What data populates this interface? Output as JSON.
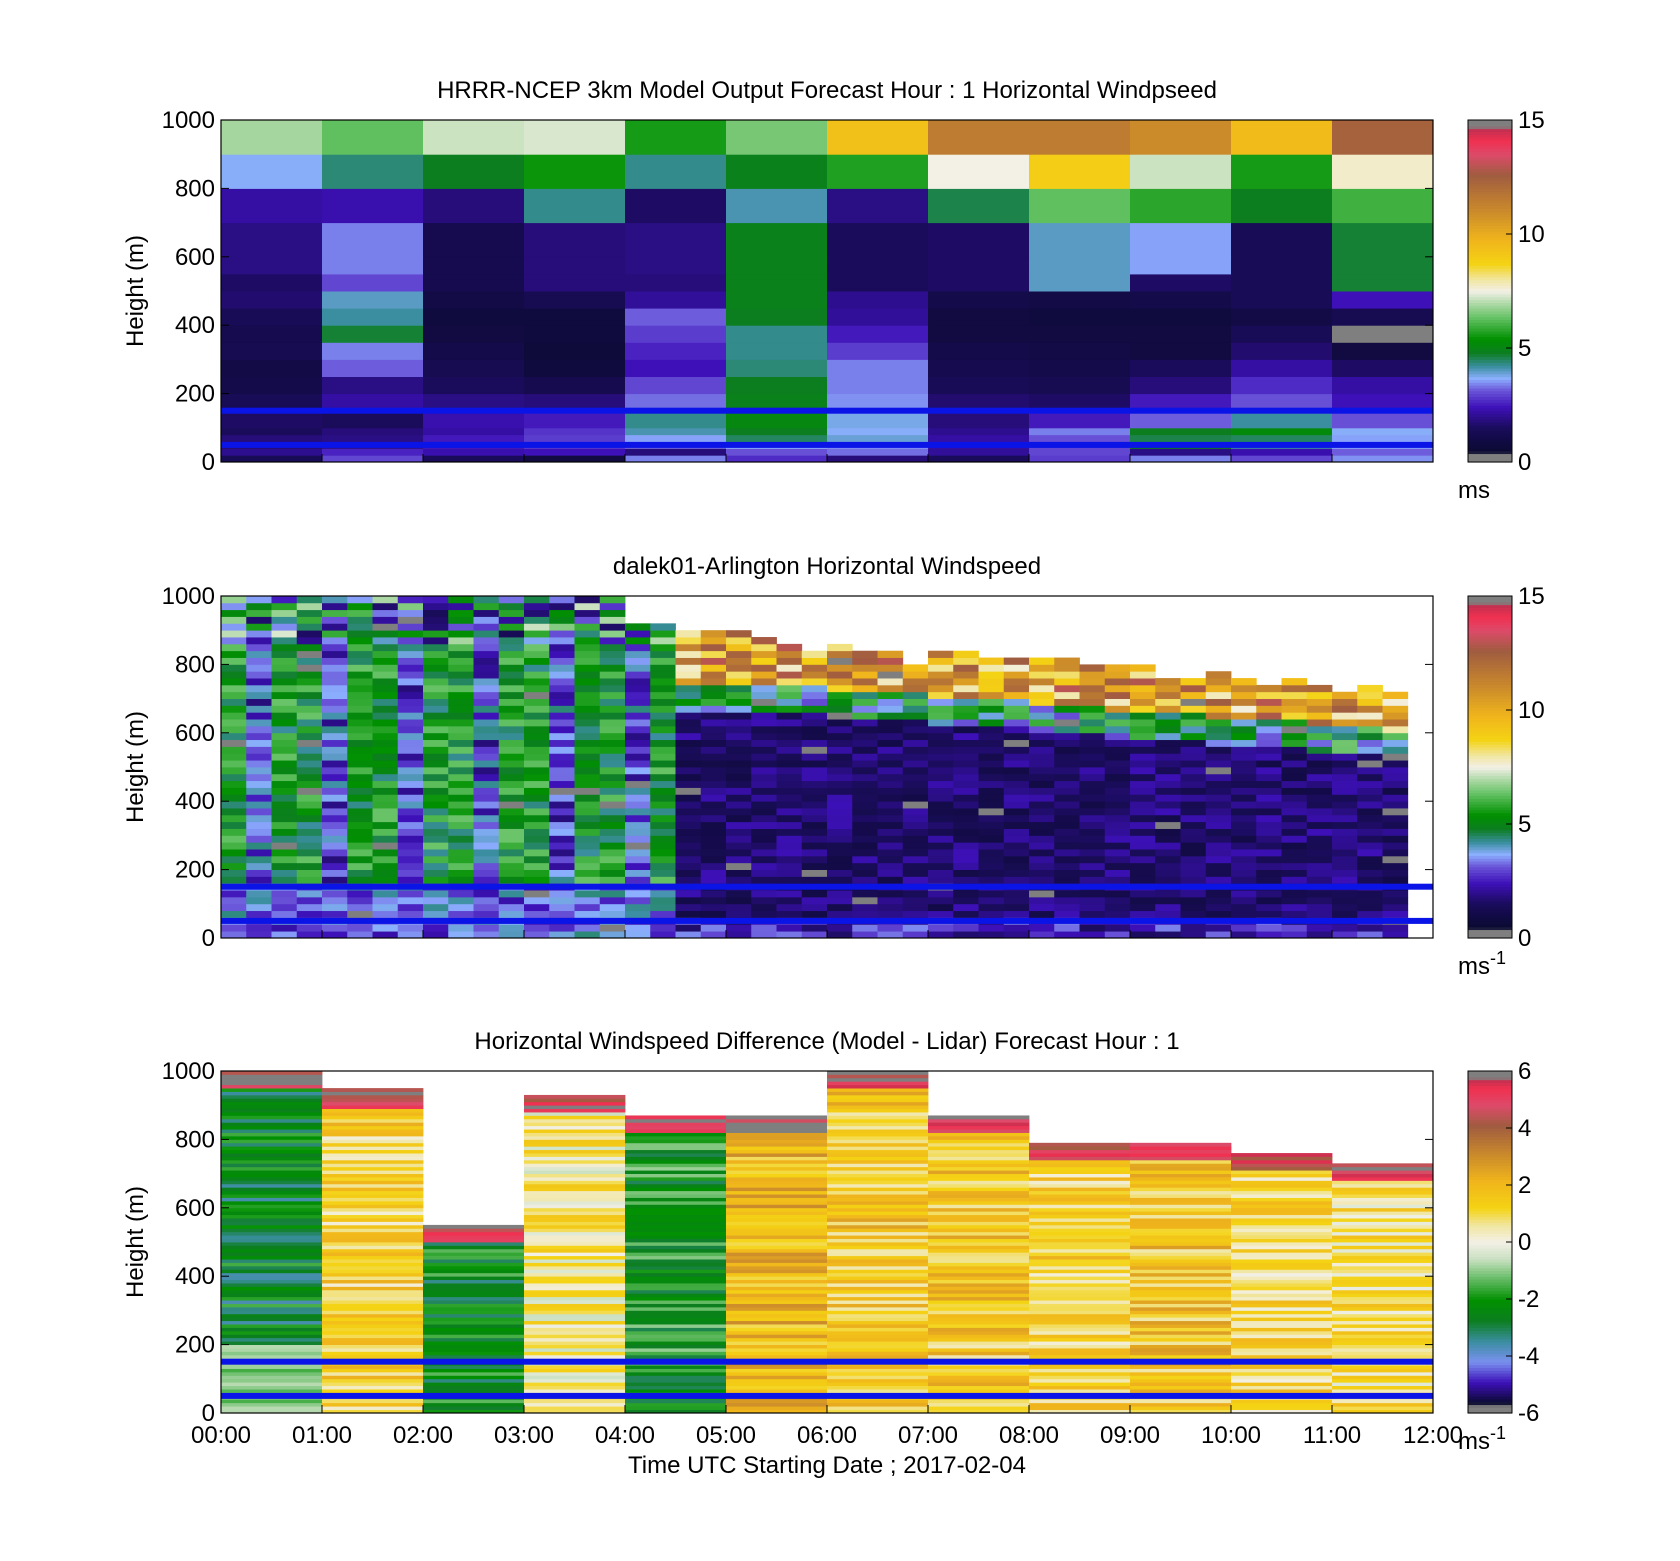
{
  "figure": {
    "xlabel": "Time UTC  Starting Date ; 2017-02-04",
    "x_ticks": [
      "00:00",
      "01:00",
      "02:00",
      "03:00",
      "04:00",
      "05:00",
      "06:00",
      "07:00",
      "08:00",
      "09:00",
      "10:00",
      "11:00",
      "12:00"
    ],
    "ref_lines_m": [
      150,
      50
    ],
    "ref_line_color": "#0a14e6"
  },
  "chart_data": [
    {
      "type": "heatmap",
      "title": "HRRR-NCEP 3km Model Output   Forecast Hour : 1 Horizontal Windpseed",
      "ylabel": "Height (m)",
      "y_ticks": [
        "0",
        "200",
        "400",
        "600",
        "800",
        "1000"
      ],
      "ylim": [
        0,
        1000
      ],
      "xlim_hours": [
        0,
        12
      ],
      "colorbar": {
        "range": [
          0,
          15
        ],
        "ticks": [
          "0",
          "5",
          "10",
          "15"
        ],
        "unit": "ms",
        "unit_sup": ""
      },
      "x_edges_hours": [
        0,
        1,
        2,
        3,
        4,
        5,
        6,
        7,
        8,
        9,
        10,
        11,
        12
      ],
      "y_edges_m": [
        0,
        20,
        40,
        60,
        80,
        100,
        150,
        200,
        250,
        300,
        350,
        400,
        450,
        500,
        550,
        600,
        700,
        800,
        900,
        1000
      ],
      "values": [
        [
          1.4,
          3.0,
          1.5,
          0.9,
          3.4,
          2.7,
          1.8,
          1.5,
          2.9,
          3.4,
          3.0,
          3.5
        ],
        [
          2.0,
          2.6,
          2.3,
          2.4,
          1.8,
          3.1,
          3.3,
          2.1,
          3.0,
          1.9,
          2.3,
          3.2
        ],
        [
          1.7,
          1.9,
          2.5,
          2.9,
          3.3,
          3.7,
          3.5,
          2.2,
          3.0,
          4.8,
          4.2,
          3.6
        ],
        [
          1.8,
          1.9,
          2.5,
          2.9,
          3.6,
          4.5,
          3.9,
          2.2,
          3.1,
          4.6,
          4.5,
          3.6
        ],
        [
          1.5,
          1.8,
          2.2,
          2.8,
          4.1,
          4.8,
          3.7,
          2.0,
          3.4,
          4.8,
          5.2,
          3.7
        ],
        [
          1.6,
          1.5,
          2.3,
          2.5,
          4.3,
          5.1,
          3.8,
          1.8,
          2.5,
          3.2,
          4.2,
          3.1
        ],
        [
          1.4,
          2.2,
          1.9,
          1.8,
          3.3,
          4.9,
          3.5,
          1.7,
          1.6,
          2.5,
          3.1,
          2.4
        ],
        [
          1.1,
          1.9,
          1.5,
          1.2,
          3.0,
          4.8,
          3.4,
          1.4,
          1.3,
          1.8,
          2.7,
          2.2
        ],
        [
          1.0,
          3.2,
          1.3,
          0.8,
          2.4,
          4.4,
          3.4,
          1.2,
          1.1,
          1.5,
          2.2,
          1.6
        ],
        [
          1.3,
          3.4,
          1.1,
          0.7,
          2.6,
          4.3,
          2.9,
          1.1,
          1.0,
          0.9,
          1.7,
          0.9
        ],
        [
          1.2,
          4.7,
          0.9,
          0.8,
          2.9,
          4.3,
          2.5,
          0.9,
          0.9,
          0.9,
          1.4,
          0.2
        ],
        [
          1.4,
          4.2,
          0.8,
          0.8,
          3.2,
          4.8,
          2.1,
          0.9,
          0.8,
          0.8,
          1.0,
          1.3
        ],
        [
          1.7,
          4.0,
          1.0,
          1.3,
          2.1,
          4.9,
          2.0,
          1.1,
          1.0,
          1.1,
          1.4,
          2.4
        ],
        [
          1.6,
          3.0,
          1.2,
          1.8,
          1.8,
          4.9,
          1.5,
          1.6,
          4.0,
          1.6,
          1.4,
          4.7
        ],
        [
          1.9,
          3.4,
          1.2,
          1.8,
          1.9,
          4.9,
          1.5,
          1.6,
          4.0,
          3.6,
          1.4,
          4.7
        ],
        [
          1.9,
          3.4,
          1.2,
          1.8,
          1.9,
          4.9,
          1.5,
          1.6,
          4.0,
          3.6,
          1.4,
          4.7
        ],
        [
          2.2,
          2.3,
          1.8,
          4.3,
          1.6,
          4.1,
          1.9,
          4.6,
          6.3,
          5.8,
          4.8,
          6.0
        ],
        [
          3.7,
          4.4,
          4.8,
          5.5,
          4.3,
          4.9,
          5.7,
          7.5,
          8.9,
          7.2,
          5.6,
          7.7
        ],
        [
          6.9,
          6.3,
          7.2,
          7.3,
          5.6,
          6.5,
          9.3,
          11.5,
          11.5,
          11.0,
          9.5,
          12.4
        ]
      ]
    },
    {
      "type": "heatmap",
      "title": "dalek01-Arlington  Horizontal Windspeed",
      "ylabel": "Height (m)",
      "y_ticks": [
        "0",
        "200",
        "400",
        "600",
        "800",
        "1000"
      ],
      "ylim": [
        0,
        1000
      ],
      "xlim_hours": [
        0,
        12
      ],
      "colorbar": {
        "range": [
          0,
          15
        ],
        "ticks": [
          "0",
          "5",
          "10",
          "15"
        ],
        "unit": "ms",
        "unit_sup": "-1"
      },
      "profile_interval_minutes": 15,
      "profile_count": 47,
      "y_bin_m": 20
    },
    {
      "type": "heatmap",
      "title": "Horizontal Windspeed Difference (Model - Lidar) Forecast Hour : 1",
      "ylabel": "Height (m)",
      "y_ticks": [
        "0",
        "200",
        "400",
        "600",
        "800",
        "1000"
      ],
      "ylim": [
        0,
        1000
      ],
      "xlim_hours": [
        0,
        12
      ],
      "colorbar": {
        "range": [
          -6,
          6
        ],
        "ticks": [
          "-6",
          "-4",
          "-2",
          "0",
          "2",
          "4",
          "6"
        ],
        "unit": "ms",
        "unit_sup": "-1"
      },
      "column_tops_m": [
        1000,
        945,
        550,
        930,
        870,
        870,
        1000,
        870,
        790,
        790,
        760,
        730
      ]
    }
  ],
  "colormaps": {
    "speed_stops": [
      [
        0.0,
        "#7f7f7f"
      ],
      [
        0.024,
        "#7f7f7f"
      ],
      [
        0.03,
        "#0a0a30"
      ],
      [
        0.1,
        "#1a0c5a"
      ],
      [
        0.16,
        "#3d10b8"
      ],
      [
        0.21,
        "#6a54d8"
      ],
      [
        0.245,
        "#8cb0ff"
      ],
      [
        0.28,
        "#3b8ea0"
      ],
      [
        0.32,
        "#0c7e20"
      ],
      [
        0.36,
        "#009000"
      ],
      [
        0.42,
        "#60c060"
      ],
      [
        0.47,
        "#b8dcb0"
      ],
      [
        0.5,
        "#f3f0e6"
      ],
      [
        0.535,
        "#f1e6a0"
      ],
      [
        0.58,
        "#f4d314"
      ],
      [
        0.65,
        "#f0b41c"
      ],
      [
        0.74,
        "#c8882c"
      ],
      [
        0.84,
        "#a05c40"
      ],
      [
        0.9,
        "#dd4a6a"
      ],
      [
        0.94,
        "#f03050"
      ],
      [
        0.975,
        "#c03050"
      ],
      [
        0.98,
        "#7f7f7f"
      ],
      [
        1.0,
        "#7f7f7f"
      ]
    ],
    "diff_stops": [
      [
        0.0,
        "#7f7f7f"
      ],
      [
        0.02,
        "#7f7f7f"
      ],
      [
        0.03,
        "#0a0a30"
      ],
      [
        0.09,
        "#3d10b8"
      ],
      [
        0.15,
        "#7a90f0"
      ],
      [
        0.21,
        "#3b8ea0"
      ],
      [
        0.27,
        "#0c7e20"
      ],
      [
        0.33,
        "#009000"
      ],
      [
        0.4,
        "#70c070"
      ],
      [
        0.45,
        "#c8e0c0"
      ],
      [
        0.5,
        "#f3f0e6"
      ],
      [
        0.55,
        "#f1e6a0"
      ],
      [
        0.6,
        "#f4d314"
      ],
      [
        0.68,
        "#f0b41c"
      ],
      [
        0.76,
        "#c8882c"
      ],
      [
        0.84,
        "#a05c40"
      ],
      [
        0.9,
        "#dd4a6a"
      ],
      [
        0.95,
        "#f03050"
      ],
      [
        0.975,
        "#c03050"
      ],
      [
        0.98,
        "#7f7f7f"
      ],
      [
        1.0,
        "#7f7f7f"
      ]
    ]
  }
}
